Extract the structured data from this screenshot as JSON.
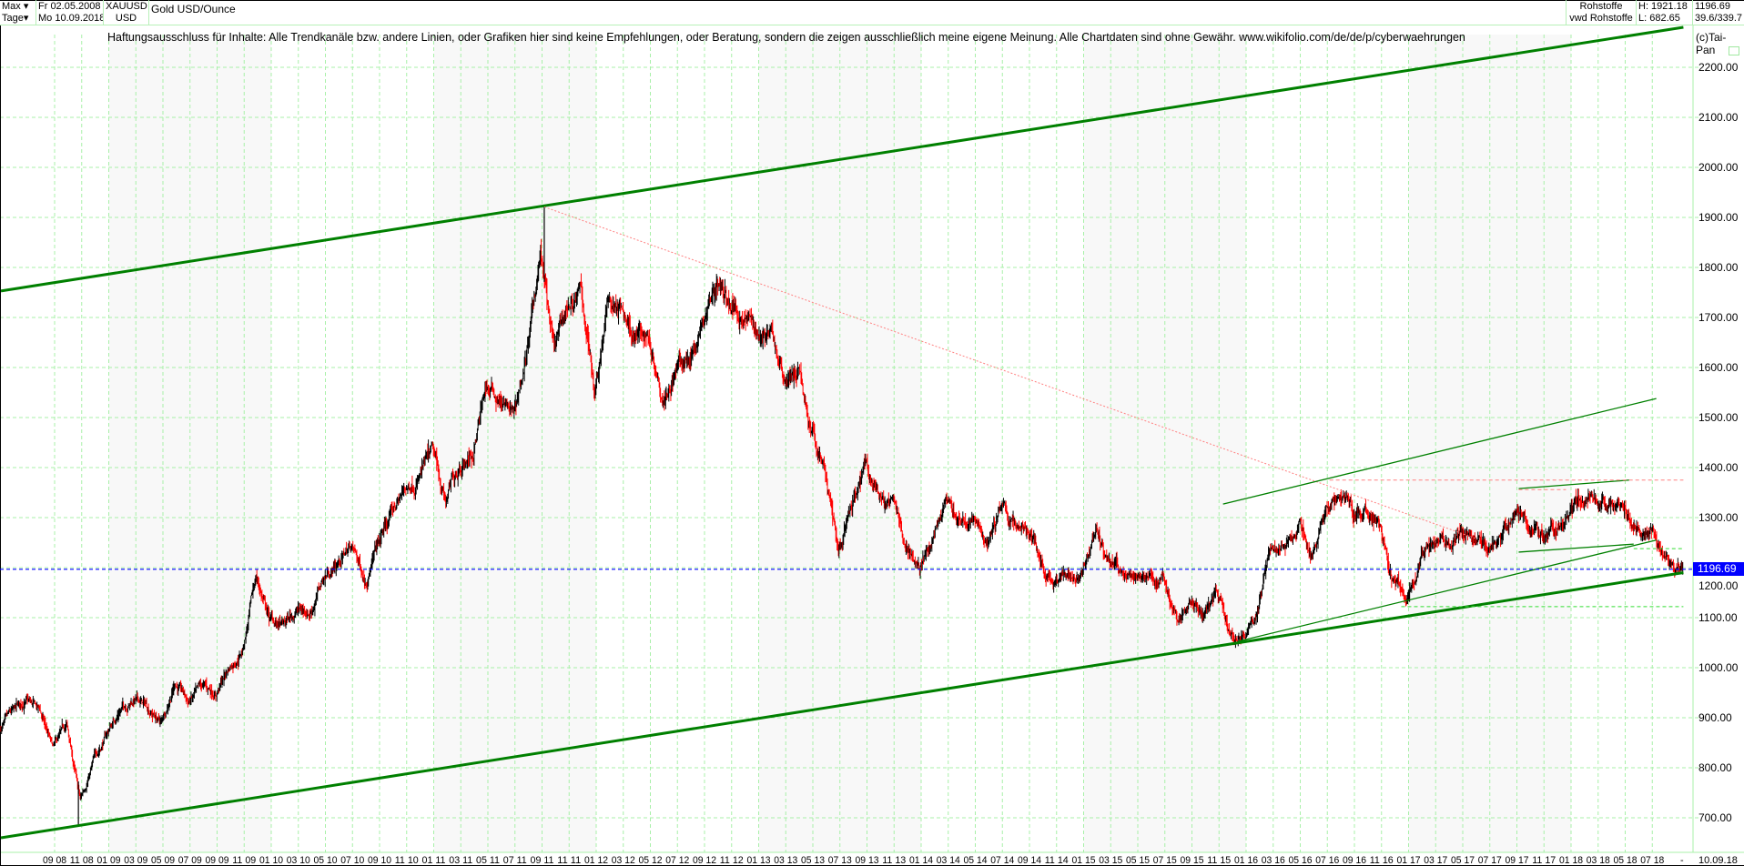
{
  "header": {
    "range_select": "Max",
    "interval_select": "Tage",
    "date_from": "Fr 02.05.2008",
    "date_to": "Mo 10.09.2018",
    "symbol": "XAUUSD",
    "currency": "USD",
    "name": "Gold USD/Ounce",
    "group": "Rohstoffe",
    "source": "vwd Rohstoffe",
    "high": "H: 1921.18",
    "low": "L: 682.65",
    "last": "1196.69",
    "extra": "39.6/339.7"
  },
  "disclaimer": "Haftungsausschluss für Inhalte: Alle Trendkanäle bzw. andere Linien, oder Grafiken hier sind keine Empfehlungen, oder Beratung, sondern die zeigen ausschließlich meine eigene Meinung. Alle Chartdaten sind ohne Gewähr.  www.wikifolio.com/de/de/p/cyberwaehrungen",
  "copyright": "(c)Tai-Pan",
  "colors": {
    "up": "#000000",
    "down": "#ff0000",
    "grid": "#a8f0a8",
    "trend": "#008000",
    "resistance": "#ff8080",
    "current": "#0000ff"
  },
  "chart_data": {
    "type": "ohlc-bars",
    "x_start": "2008-05-02",
    "x_end": "2018-09-10",
    "ylim": [
      660,
      2290
    ],
    "grid": true,
    "y_ticks": [
      "700.00",
      "800.00",
      "900.00",
      "1000.00",
      "1100.00",
      "1200.00",
      "1300.00",
      "1400.00",
      "1500.00",
      "1600.00",
      "1700.00",
      "1800.00",
      "1900.00",
      "2000.00",
      "2100.00",
      "2200.00"
    ],
    "x_ticks": [
      "09 08",
      "11 08",
      "01 09",
      "03 09",
      "05 09",
      "07 09",
      "09 09",
      "11 09",
      "01 10",
      "03 10",
      "05 10",
      "07 10",
      "09 10",
      "11 10",
      "01 11",
      "03 11",
      "05 11",
      "07 11",
      "09 11",
      "11 11",
      "01 12",
      "03 12",
      "05 12",
      "07 12",
      "09 12",
      "11 12",
      "01 13",
      "03 13",
      "05 13",
      "07 13",
      "09 13",
      "11 13",
      "01 14",
      "03 14",
      "05 14",
      "07 14",
      "09 14",
      "11 14",
      "01 15",
      "03 15",
      "05 15",
      "07 15",
      "09 15",
      "11 15",
      "01 16",
      "03 16",
      "05 16",
      "07 16",
      "09 16",
      "11 16",
      "01 17",
      "03 17",
      "05 17",
      "07 17",
      "09 17",
      "11 17",
      "01 18",
      "03 18",
      "05 18",
      "07 18"
    ],
    "x_end_label": "10.09.18",
    "x_end_dash": "-",
    "last_price": 1196.69,
    "last_price_label": "1196.69",
    "high": {
      "date": "2011-09-06",
      "value": 1921.18
    },
    "low": {
      "date": "2008-10-24",
      "value": 682.65
    },
    "monthly_close": [
      [
        "2008-05",
        885
      ],
      [
        "2008-06",
        930
      ],
      [
        "2008-07",
        912
      ],
      [
        "2008-08",
        833
      ],
      [
        "2008-09",
        880
      ],
      [
        "2008-10",
        730
      ],
      [
        "2008-11",
        815
      ],
      [
        "2008-12",
        870
      ],
      [
        "2009-01",
        920
      ],
      [
        "2009-02",
        940
      ],
      [
        "2009-03",
        920
      ],
      [
        "2009-04",
        890
      ],
      [
        "2009-05",
        975
      ],
      [
        "2009-06",
        930
      ],
      [
        "2009-07",
        955
      ],
      [
        "2009-08",
        950
      ],
      [
        "2009-09",
        1000
      ],
      [
        "2009-10",
        1040
      ],
      [
        "2009-11",
        1180
      ],
      [
        "2009-12",
        1095
      ],
      [
        "2010-01",
        1080
      ],
      [
        "2010-02",
        1115
      ],
      [
        "2010-03",
        1115
      ],
      [
        "2010-04",
        1180
      ],
      [
        "2010-05",
        1210
      ],
      [
        "2010-06",
        1245
      ],
      [
        "2010-07",
        1180
      ],
      [
        "2010-08",
        1245
      ],
      [
        "2010-09",
        1307
      ],
      [
        "2010-10",
        1357
      ],
      [
        "2010-11",
        1385
      ],
      [
        "2010-12",
        1420
      ],
      [
        "2011-01",
        1330
      ],
      [
        "2011-02",
        1410
      ],
      [
        "2011-03",
        1430
      ],
      [
        "2011-04",
        1560
      ],
      [
        "2011-05",
        1535
      ],
      [
        "2011-06",
        1500
      ],
      [
        "2011-07",
        1628
      ],
      [
        "2011-08",
        1825
      ],
      [
        "2011-09",
        1620
      ],
      [
        "2011-10",
        1720
      ],
      [
        "2011-11",
        1745
      ],
      [
        "2011-12",
        1565
      ],
      [
        "2012-01",
        1740
      ],
      [
        "2012-02",
        1710
      ],
      [
        "2012-03",
        1668
      ],
      [
        "2012-04",
        1664
      ],
      [
        "2012-05",
        1560
      ],
      [
        "2012-06",
        1598
      ],
      [
        "2012-07",
        1615
      ],
      [
        "2012-08",
        1690
      ],
      [
        "2012-09",
        1775
      ],
      [
        "2012-10",
        1720
      ],
      [
        "2012-11",
        1712
      ],
      [
        "2012-12",
        1675
      ],
      [
        "2013-01",
        1663
      ],
      [
        "2013-02",
        1580
      ],
      [
        "2013-03",
        1597
      ],
      [
        "2013-04",
        1470
      ],
      [
        "2013-05",
        1393
      ],
      [
        "2013-06",
        1234
      ],
      [
        "2013-07",
        1312
      ],
      [
        "2013-08",
        1396
      ],
      [
        "2013-09",
        1327
      ],
      [
        "2013-10",
        1323
      ],
      [
        "2013-11",
        1250
      ],
      [
        "2013-12",
        1202
      ],
      [
        "2014-01",
        1244
      ],
      [
        "2014-02",
        1326
      ],
      [
        "2014-03",
        1284
      ],
      [
        "2014-04",
        1296
      ],
      [
        "2014-05",
        1250
      ],
      [
        "2014-06",
        1322
      ],
      [
        "2014-07",
        1282
      ],
      [
        "2014-08",
        1287
      ],
      [
        "2014-09",
        1210
      ],
      [
        "2014-10",
        1171
      ],
      [
        "2014-11",
        1182
      ],
      [
        "2014-12",
        1199
      ],
      [
        "2015-01",
        1284
      ],
      [
        "2015-02",
        1213
      ],
      [
        "2015-03",
        1183
      ],
      [
        "2015-04",
        1183
      ],
      [
        "2015-05",
        1190
      ],
      [
        "2015-06",
        1172
      ],
      [
        "2015-07",
        1095
      ],
      [
        "2015-08",
        1133
      ],
      [
        "2015-09",
        1115
      ],
      [
        "2015-10",
        1142
      ],
      [
        "2015-11",
        1065
      ],
      [
        "2015-12",
        1061
      ],
      [
        "2016-01",
        1118
      ],
      [
        "2016-02",
        1238
      ],
      [
        "2016-03",
        1233
      ],
      [
        "2016-04",
        1293
      ],
      [
        "2016-05",
        1215
      ],
      [
        "2016-06",
        1321
      ],
      [
        "2016-07",
        1350
      ],
      [
        "2016-08",
        1309
      ],
      [
        "2016-09",
        1316
      ],
      [
        "2016-10",
        1273
      ],
      [
        "2016-11",
        1173
      ],
      [
        "2016-12",
        1146
      ],
      [
        "2017-01",
        1211
      ],
      [
        "2017-02",
        1249
      ],
      [
        "2017-03",
        1249
      ],
      [
        "2017-04",
        1268
      ],
      [
        "2017-05",
        1268
      ],
      [
        "2017-06",
        1242
      ],
      [
        "2017-07",
        1269
      ],
      [
        "2017-08",
        1321
      ],
      [
        "2017-09",
        1280
      ],
      [
        "2017-10",
        1270
      ],
      [
        "2017-11",
        1275
      ],
      [
        "2017-12",
        1303
      ],
      [
        "2018-01",
        1345
      ],
      [
        "2018-02",
        1318
      ],
      [
        "2018-03",
        1325
      ],
      [
        "2018-04",
        1315
      ],
      [
        "2018-05",
        1298
      ],
      [
        "2018-06",
        1253
      ],
      [
        "2018-07",
        1224
      ],
      [
        "2018-08",
        1201
      ],
      [
        "2018-09",
        1196.69
      ]
    ],
    "trendlines": [
      {
        "kind": "channel-upper",
        "style": "thick",
        "from": [
          "2008-05-02",
          1753
        ],
        "to": [
          "2018-09-10",
          2280
        ]
      },
      {
        "kind": "channel-lower",
        "style": "thick",
        "from": [
          "2008-05-02",
          660
        ],
        "to": [
          "2018-09-10",
          1190
        ]
      },
      {
        "kind": "resistance",
        "style": "red-dotted",
        "from": [
          "2011-09-06",
          1921
        ],
        "to": [
          "2017-06-01",
          1258
        ]
      },
      {
        "kind": "channel-upper",
        "style": "thin",
        "from": [
          "2015-11-10",
          1327
        ],
        "to": [
          "2018-07-10",
          1538
        ]
      },
      {
        "kind": "channel-lower",
        "style": "thin",
        "from": [
          "2015-12-15",
          1053
        ],
        "to": [
          "2018-07-10",
          1255
        ]
      },
      {
        "kind": "range-top",
        "style": "thin",
        "from": [
          "2017-09-05",
          1358
        ],
        "to": [
          "2018-05-10",
          1375
        ]
      },
      {
        "kind": "range-bottom",
        "style": "thin",
        "from": [
          "2017-09-05",
          1231
        ],
        "to": [
          "2018-05-20",
          1247
        ]
      },
      {
        "kind": "horizontal",
        "style": "red-dashed",
        "from": [
          "2016-07-06",
          1375
        ],
        "to": [
          "2018-09-10",
          1375
        ]
      },
      {
        "kind": "horizontal",
        "style": "red-dashed",
        "from": [
          "2017-09-05",
          1356
        ],
        "to": [
          "2017-12-20",
          1356
        ]
      },
      {
        "kind": "horizontal",
        "style": "green-dashed",
        "from": [
          "2018-05-20",
          1238
        ],
        "to": [
          "2018-09-10",
          1238
        ]
      },
      {
        "kind": "horizontal",
        "style": "green-dashed",
        "from": [
          "2016-12-15",
          1122
        ],
        "to": [
          "2018-09-10",
          1122
        ]
      }
    ]
  }
}
